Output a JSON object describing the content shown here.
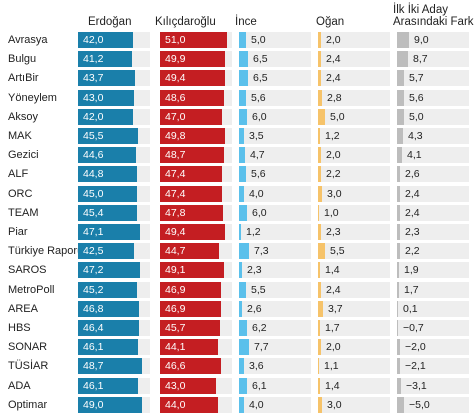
{
  "chart_data": {
    "type": "table",
    "columns": [
      {
        "key": "erdogan",
        "label": "Erdoğan",
        "color": "#1a7faa",
        "max": 55,
        "labelInside": true
      },
      {
        "key": "kilicdaroglu",
        "label": "Kılıçdaroğlu",
        "color": "#c41e22",
        "max": 55,
        "labelInside": true
      },
      {
        "key": "ince",
        "label": "İnce",
        "color": "#5bc0eb",
        "max": 55,
        "labelInside": false
      },
      {
        "key": "ogan",
        "label": "Oğan",
        "color": "#f6c36a",
        "max": 55,
        "labelInside": false
      },
      {
        "key": "fark",
        "label": "İlk İki Aday Arasındaki Fark",
        "label_lines": [
          "İlk İki Aday",
          "Arasındaki Fark"
        ],
        "color": "#bdbdbd",
        "max": 55,
        "labelInside": false
      }
    ],
    "rows": [
      {
        "pollster": "Avrasya",
        "erdogan": "42,0",
        "kilicdaroglu": "51,0",
        "ince": "5,0",
        "ogan": "2,0",
        "fark": "9,0"
      },
      {
        "pollster": "Bulgu",
        "erdogan": "41,2",
        "kilicdaroglu": "49,9",
        "ince": "6,5",
        "ogan": "2,4",
        "fark": "8,7"
      },
      {
        "pollster": "ArtıBir",
        "erdogan": "43,7",
        "kilicdaroglu": "49,4",
        "ince": "6,5",
        "ogan": "2,4",
        "fark": "5,7"
      },
      {
        "pollster": "Yöneylem",
        "erdogan": "43,0",
        "kilicdaroglu": "48,6",
        "ince": "5,6",
        "ogan": "2,8",
        "fark": "5,6"
      },
      {
        "pollster": "Aksoy",
        "erdogan": "42,0",
        "kilicdaroglu": "47,0",
        "ince": "6,0",
        "ogan": "5,0",
        "fark": "5,0"
      },
      {
        "pollster": "MAK",
        "erdogan": "45,5",
        "kilicdaroglu": "49,8",
        "ince": "3,5",
        "ogan": "1,2",
        "fark": "4,3"
      },
      {
        "pollster": "Gezici",
        "erdogan": "44,6",
        "kilicdaroglu": "48,7",
        "ince": "4,7",
        "ogan": "2,0",
        "fark": "4,1"
      },
      {
        "pollster": "ALF",
        "erdogan": "44,8",
        "kilicdaroglu": "47,4",
        "ince": "5,6",
        "ogan": "2,2",
        "fark": "2,6"
      },
      {
        "pollster": "ORC",
        "erdogan": "45,0",
        "kilicdaroglu": "47,4",
        "ince": "4,0",
        "ogan": "3,0",
        "fark": "2,4"
      },
      {
        "pollster": "TEAM",
        "erdogan": "45,4",
        "kilicdaroglu": "47,8",
        "ince": "6,0",
        "ogan": "1,0",
        "fark": "2,4"
      },
      {
        "pollster": "Piar",
        "erdogan": "47,1",
        "kilicdaroglu": "49,4",
        "ince": "1,2",
        "ogan": "2,3",
        "fark": "2,3"
      },
      {
        "pollster": "Türkiye Raporu",
        "erdogan": "42,5",
        "kilicdaroglu": "44,7",
        "ince": "7,3",
        "ogan": "5,5",
        "fark": "2,2"
      },
      {
        "pollster": "SAROS",
        "erdogan": "47,2",
        "kilicdaroglu": "49,1",
        "ince": "2,3",
        "ogan": "1,4",
        "fark": "1,9"
      },
      {
        "pollster": "MetroPoll",
        "erdogan": "45,2",
        "kilicdaroglu": "46,9",
        "ince": "5,5",
        "ogan": "2,4",
        "fark": "1,7"
      },
      {
        "pollster": "AREA",
        "erdogan": "46,8",
        "kilicdaroglu": "46,9",
        "ince": "2,6",
        "ogan": "3,7",
        "fark": "0,1"
      },
      {
        "pollster": "HBS",
        "erdogan": "46,4",
        "kilicdaroglu": "45,7",
        "ince": "6,2",
        "ogan": "1,7",
        "fark": "−0,7"
      },
      {
        "pollster": "SONAR",
        "erdogan": "46,1",
        "kilicdaroglu": "44,1",
        "ince": "7,7",
        "ogan": "2,0",
        "fark": "−2,0"
      },
      {
        "pollster": "TÜSİAR",
        "erdogan": "48,7",
        "kilicdaroglu": "46,6",
        "ince": "3,6",
        "ogan": "1,1",
        "fark": "−2,1"
      },
      {
        "pollster": "ADA",
        "erdogan": "46,1",
        "kilicdaroglu": "43,0",
        "ince": "6,1",
        "ogan": "1,4",
        "fark": "−3,1"
      },
      {
        "pollster": "Optimar",
        "erdogan": "49,0",
        "kilicdaroglu": "44,0",
        "ince": "4,0",
        "ogan": "3,0",
        "fark": "−5,0"
      }
    ]
  }
}
